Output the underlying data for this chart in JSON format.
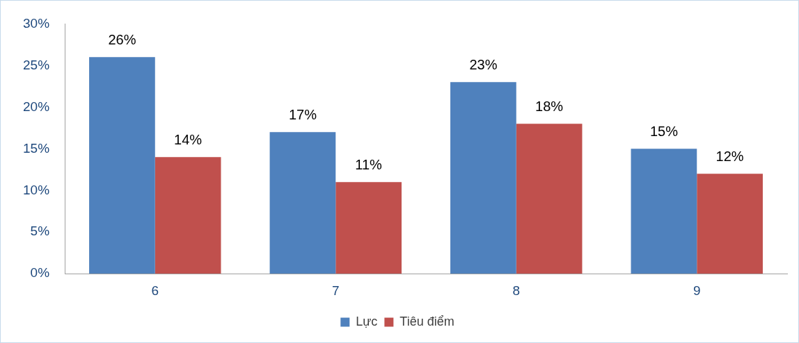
{
  "chart_data": {
    "type": "bar",
    "categories": [
      "6",
      "7",
      "8",
      "9"
    ],
    "series": [
      {
        "name": "Lực",
        "color": "#4f81bd",
        "values": [
          26,
          17,
          23,
          15
        ],
        "value_labels": [
          "26%",
          "17%",
          "23%",
          "15%"
        ]
      },
      {
        "name": "Tiêu điểm",
        "color": "#c0504d",
        "values": [
          14,
          11,
          18,
          12
        ],
        "value_labels": [
          "14%",
          "11%",
          "18%",
          "12%"
        ]
      }
    ],
    "ylim": [
      0,
      30
    ],
    "yticks": [
      {
        "value": 0,
        "label": "0%"
      },
      {
        "value": 5,
        "label": "5%"
      },
      {
        "value": 10,
        "label": "10%"
      },
      {
        "value": 15,
        "label": "15%"
      },
      {
        "value": 20,
        "label": "20%"
      },
      {
        "value": 25,
        "label": "25%"
      },
      {
        "value": 30,
        "label": "30%"
      }
    ],
    "grid": false,
    "legend": "bottom"
  }
}
